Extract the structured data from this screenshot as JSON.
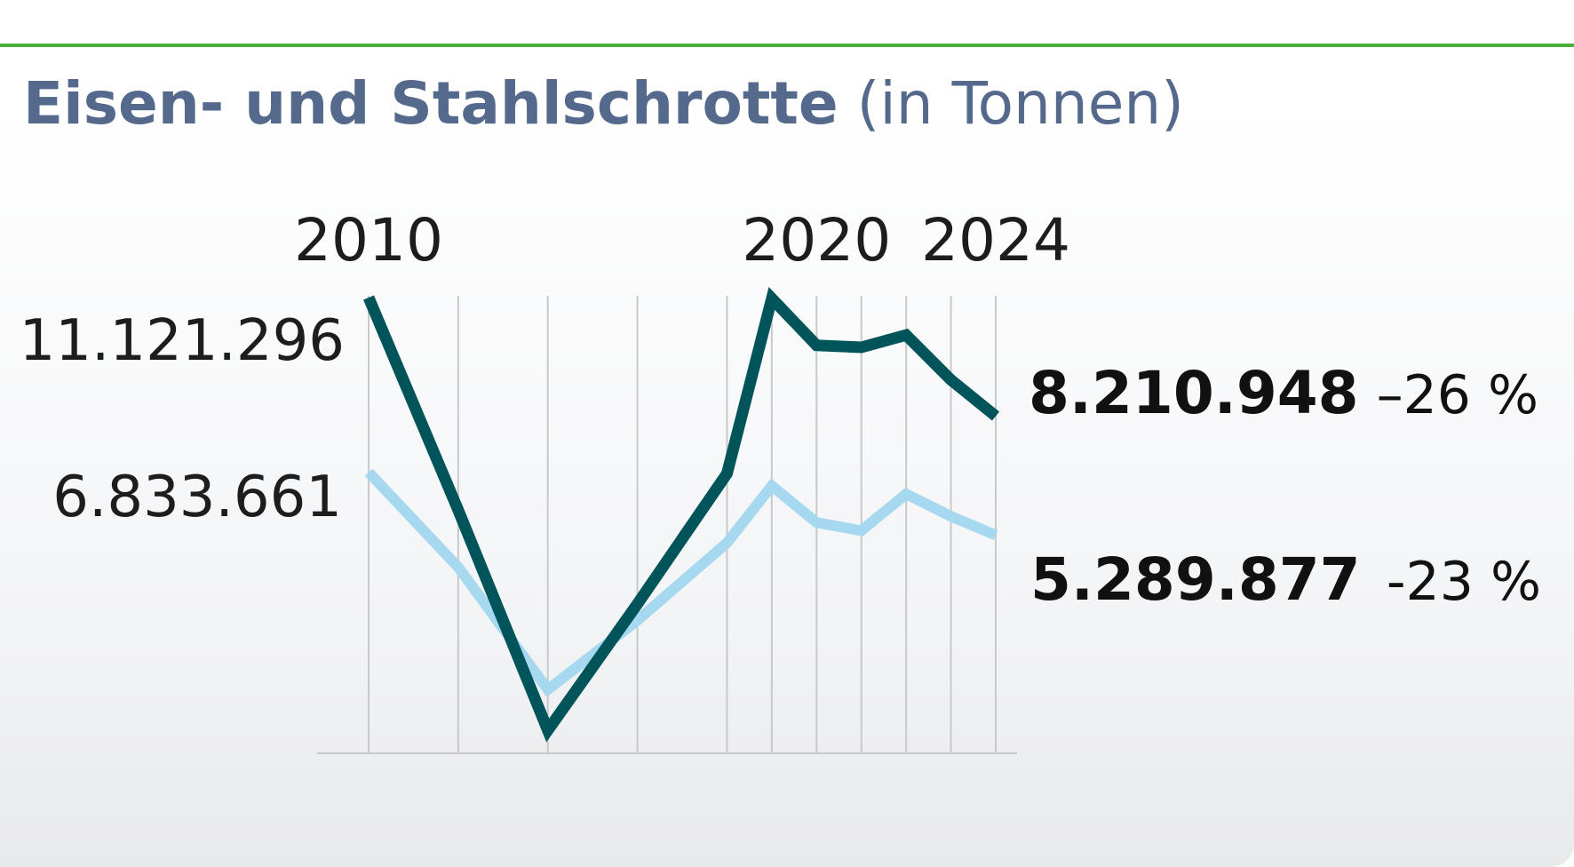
{
  "header": {
    "title": "Eisen- und Stahlschrotte",
    "unit": "(in Tonnen)"
  },
  "colors": {
    "accent_rule": "#4caf3a",
    "title": "#54698c",
    "series_dark": "#00545a",
    "series_light": "#a6d9ef",
    "grid": "#c9c9c9"
  },
  "chart_data": {
    "type": "line",
    "title": "Eisen- und Stahlschrotte",
    "subtitle": "(in Tonnen)",
    "x": [
      2010,
      2012,
      2014,
      2016,
      2018,
      2019,
      2020,
      2021,
      2022,
      2023,
      2024
    ],
    "x_tick_labels": [
      "2010",
      "2020",
      "2024"
    ],
    "xlim": [
      2010,
      2024
    ],
    "ylim": [
      0,
      11121296
    ],
    "grid": "vertical",
    "series": [
      {
        "role": "dark",
        "values": [
          11121296,
          5900000,
          500000,
          3600000,
          6800000,
          11100000,
          9950000,
          9900000,
          10200000,
          9100000,
          8210948
        ],
        "start_label": "11.121.296",
        "end_label": "8.210.948",
        "change_label": "–26 %"
      },
      {
        "role": "light",
        "values": [
          6833661,
          4500000,
          1500000,
          3200000,
          5100000,
          6500000,
          5600000,
          5400000,
          6300000,
          5750000,
          5289877
        ],
        "start_label": "6.833.661",
        "end_label": "5.289.877",
        "change_label": "-23 %"
      }
    ]
  }
}
